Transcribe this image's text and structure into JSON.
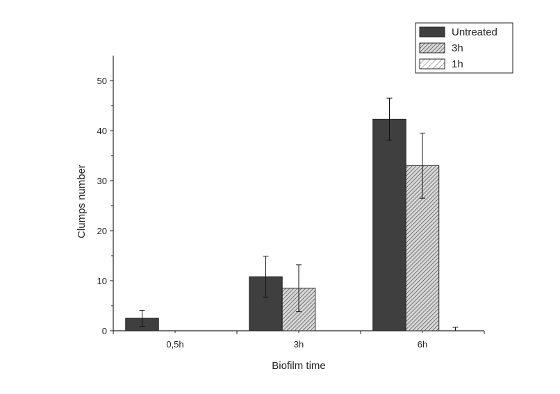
{
  "chart_data": {
    "type": "bar",
    "xlabel": "Biofilm time",
    "ylabel": "Clumps number",
    "categories": [
      "0,5h",
      "3h",
      "6h"
    ],
    "ylim": [
      0,
      55
    ],
    "yticks": [
      0,
      10,
      20,
      30,
      40,
      50
    ],
    "grid": false,
    "legend_position": "top-right",
    "series": [
      {
        "name": "Untreated",
        "values": [
          2.5,
          10.8,
          42.3
        ],
        "errors": [
          1.6,
          4.1,
          4.2
        ],
        "fill": "solid",
        "color": "#3f3f3f"
      },
      {
        "name": "3h",
        "values": [
          0,
          8.5,
          33.0
        ],
        "errors": [
          0,
          4.7,
          6.5
        ],
        "fill": "dense-hatch",
        "color": "#777777"
      },
      {
        "name": "1h",
        "values": [
          0,
          0,
          0
        ],
        "errors": [
          0,
          0,
          0.7
        ],
        "fill": "sparse-hatch",
        "color": "#ffffff"
      }
    ]
  }
}
